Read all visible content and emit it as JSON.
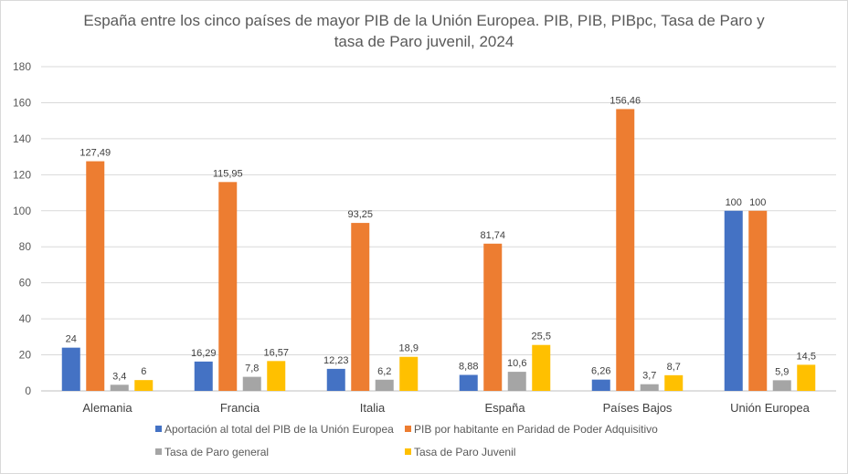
{
  "chart_data": {
    "type": "bar",
    "title_lines": [
      "España entre los cinco países de mayor PIB de la Unión Europea. PIB,  PIB, PIBpc, Tasa de Paro y",
      "tasa de Paro juvenil, 2024"
    ],
    "categories": [
      "Alemania",
      "Francia",
      "Italia",
      "España",
      "Países Bajos",
      "Unión Europea"
    ],
    "series": [
      {
        "name": "Aportación al total del PIB de la Unión Europea",
        "color": "#4472C4",
        "values": [
          24,
          16.29,
          12.23,
          8.88,
          6.26,
          100
        ],
        "labels": [
          "24",
          "16,29",
          "12,23",
          "8,88",
          "6,26",
          "100"
        ]
      },
      {
        "name": "PIB por habitante en Paridad de Poder Adquisitivo",
        "color": "#ED7D31",
        "values": [
          127.49,
          115.95,
          93.25,
          81.74,
          156.46,
          100
        ],
        "labels": [
          "127,49",
          "115,95",
          "93,25",
          "81,74",
          "156,46",
          "100"
        ]
      },
      {
        "name": "Tasa de Paro general",
        "color": "#A5A5A5",
        "values": [
          3.4,
          7.8,
          6.2,
          10.6,
          3.7,
          5.9
        ],
        "labels": [
          "3,4",
          "7,8",
          "6,2",
          "10,6",
          "3,7",
          "5,9"
        ]
      },
      {
        "name": "Tasa de Paro Juvenil",
        "color": "#FFC000",
        "values": [
          6,
          16.57,
          18.9,
          25.5,
          8.7,
          14.5
        ],
        "labels": [
          "6",
          "16,57",
          "18,9",
          "25,5",
          "8,7",
          "14,5"
        ]
      }
    ],
    "ylim": [
      0,
      180
    ],
    "yticks": [
      "0",
      "20",
      "40",
      "60",
      "80",
      "100",
      "120",
      "140",
      "160",
      "180"
    ],
    "grid": true,
    "legend_position": "bottom"
  }
}
